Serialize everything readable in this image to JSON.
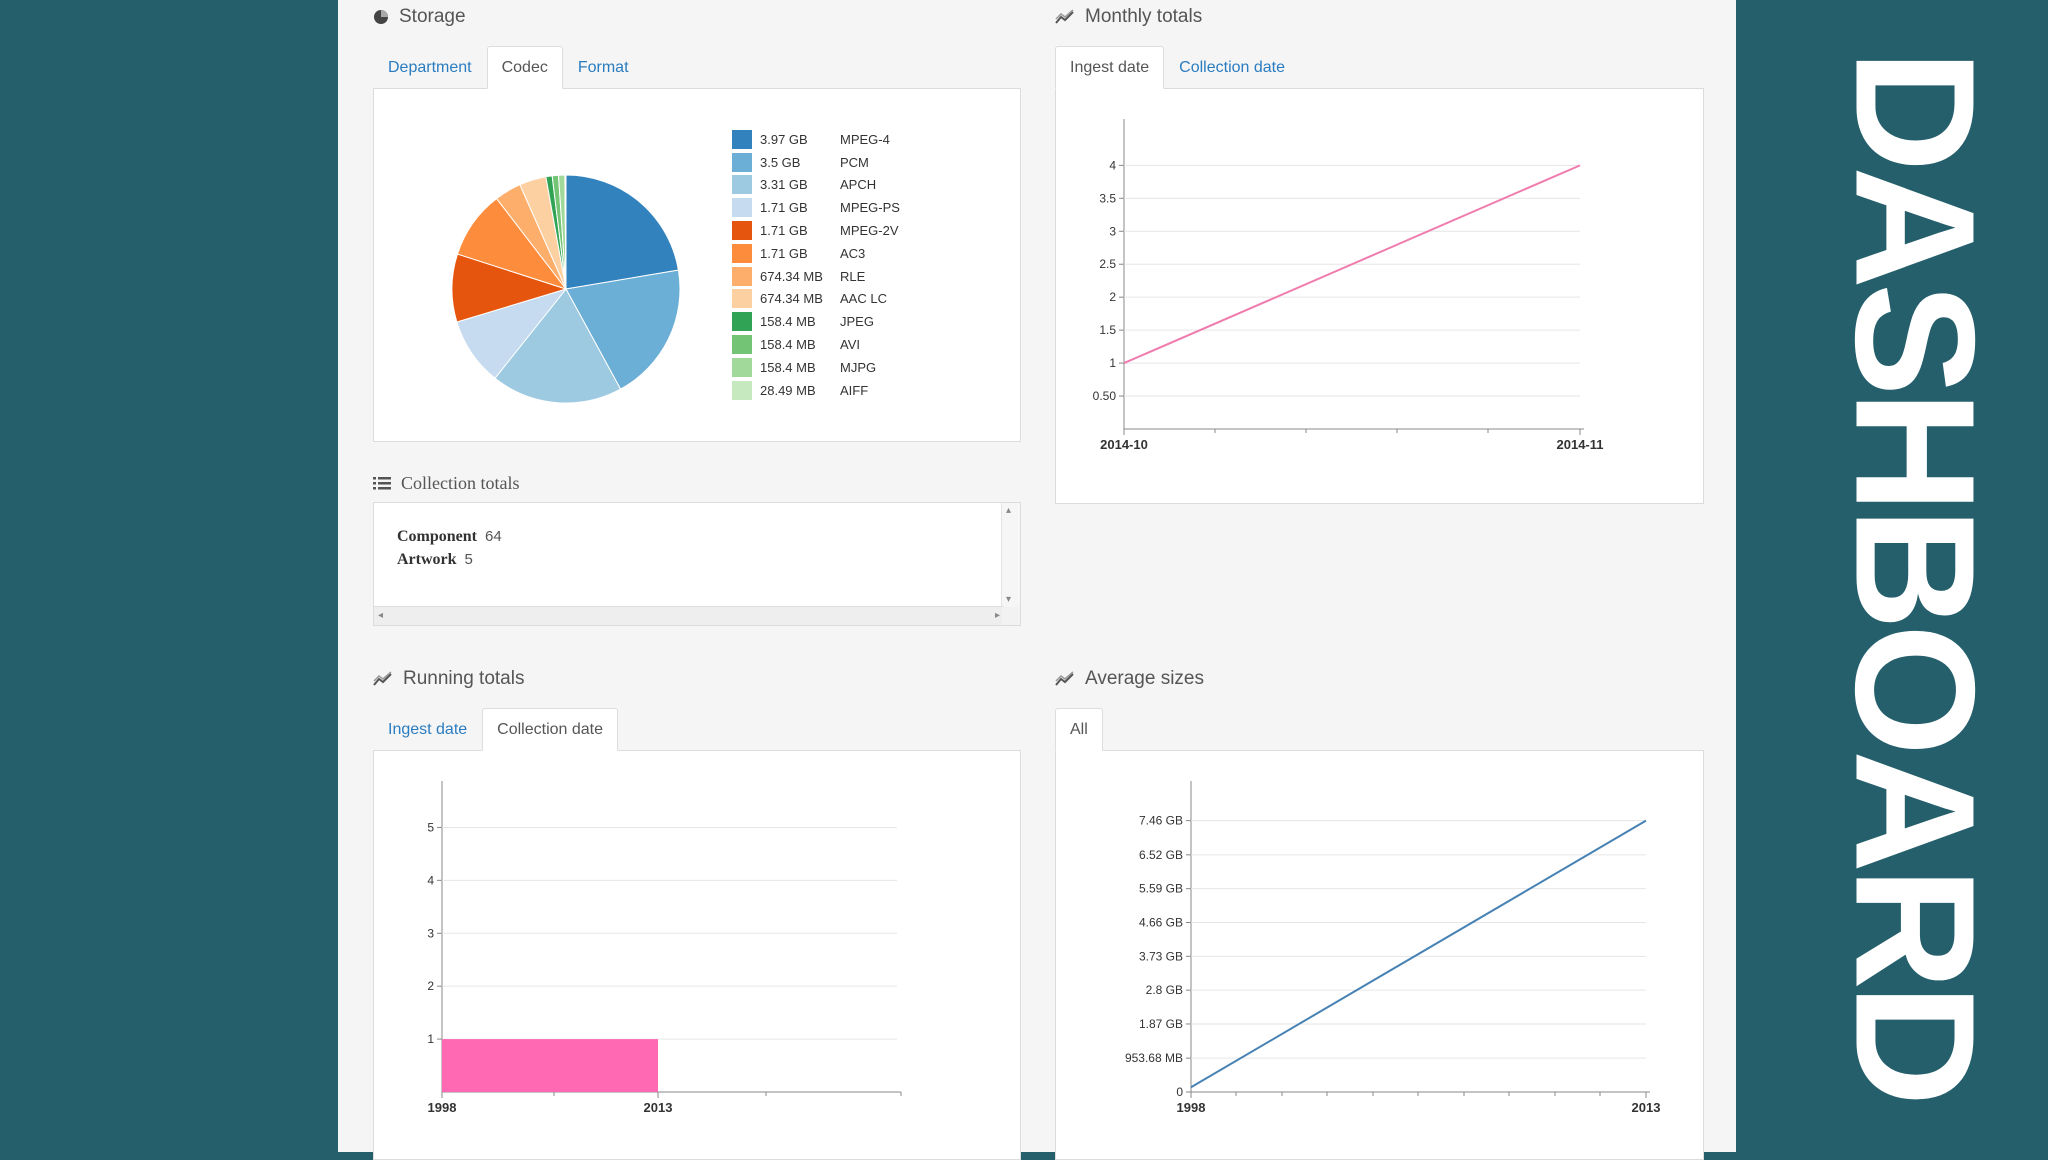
{
  "brand": {
    "text": "DASHBOARD"
  },
  "storage": {
    "title": "Storage",
    "icon": "pie-chart-icon",
    "tabs": [
      "Department",
      "Codec",
      "Format"
    ],
    "active_tab": "Codec"
  },
  "monthly": {
    "title": "Monthly totals",
    "icon": "line-chart-icon",
    "tabs": [
      "Ingest date",
      "Collection date"
    ],
    "active_tab": "Ingest date"
  },
  "collection_totals": {
    "title": "Collection totals",
    "icon": "list-icon",
    "rows": [
      {
        "label": "Component",
        "value": "64"
      },
      {
        "label": "Artwork",
        "value": "5"
      }
    ]
  },
  "running": {
    "title": "Running totals",
    "icon": "line-chart-icon",
    "tabs": [
      "Ingest date",
      "Collection date"
    ],
    "active_tab": "Collection date"
  },
  "average": {
    "title": "Average sizes",
    "icon": "line-chart-icon",
    "tabs": [
      "All"
    ],
    "active_tab": "All"
  },
  "chart_data": [
    {
      "type": "pie",
      "title": "",
      "labels": [
        "MPEG-4",
        "PCM",
        "APCH",
        "MPEG-PS",
        "MPEG-2V",
        "AC3",
        "RLE",
        "AAC LC",
        "JPEG",
        "AVI",
        "MJPG",
        "AIFF"
      ],
      "sizes": [
        "3.97 GB",
        "3.5 GB",
        "3.31 GB",
        "1.71 GB",
        "1.71 GB",
        "1.71 GB",
        "674.34 MB",
        "674.34 MB",
        "158.4 MB",
        "158.4 MB",
        "158.4 MB",
        "28.49 MB"
      ],
      "values": [
        3.97,
        3.5,
        3.31,
        1.71,
        1.71,
        1.71,
        0.674,
        0.674,
        0.158,
        0.158,
        0.158,
        0.028
      ],
      "colors": [
        "#3182bd",
        "#6baed6",
        "#9ecae1",
        "#c6dbef",
        "#e6550d",
        "#fd8d3c",
        "#fdae6b",
        "#fdd0a2",
        "#31a354",
        "#74c476",
        "#a1d99b",
        "#c7e9c0"
      ],
      "legend": "right"
    },
    {
      "type": "line",
      "title": "",
      "x": [
        "2014-10",
        "2014-11"
      ],
      "y": [
        1,
        4
      ],
      "yticks": [
        "0.50",
        "1",
        "1.5",
        "2",
        "2.5",
        "3",
        "3.5",
        "4"
      ],
      "ylim": [
        0,
        4.4
      ],
      "color": "#f07cae",
      "grid": true
    },
    {
      "type": "bar",
      "title": "",
      "x_ticks": [
        "1998",
        "2013"
      ],
      "bars": [
        {
          "from": "1998",
          "to": "2013",
          "value": 1
        }
      ],
      "yticks": [
        "1",
        "2",
        "3",
        "4",
        "5"
      ],
      "ylim": [
        0,
        5.5
      ],
      "color": "#ff69b4",
      "grid": true
    },
    {
      "type": "line",
      "title": "",
      "x": [
        "1998",
        "2013"
      ],
      "y": [
        0.13,
        7.46
      ],
      "yticks": [
        "0",
        "953.68 MB",
        "1.87 GB",
        "2.8 GB",
        "3.73 GB",
        "4.66 GB",
        "5.59 GB",
        "6.52 GB",
        "7.46 GB"
      ],
      "y_unit": "GB",
      "ylim": [
        0,
        8
      ],
      "color": "#4682b4",
      "grid": true
    }
  ]
}
